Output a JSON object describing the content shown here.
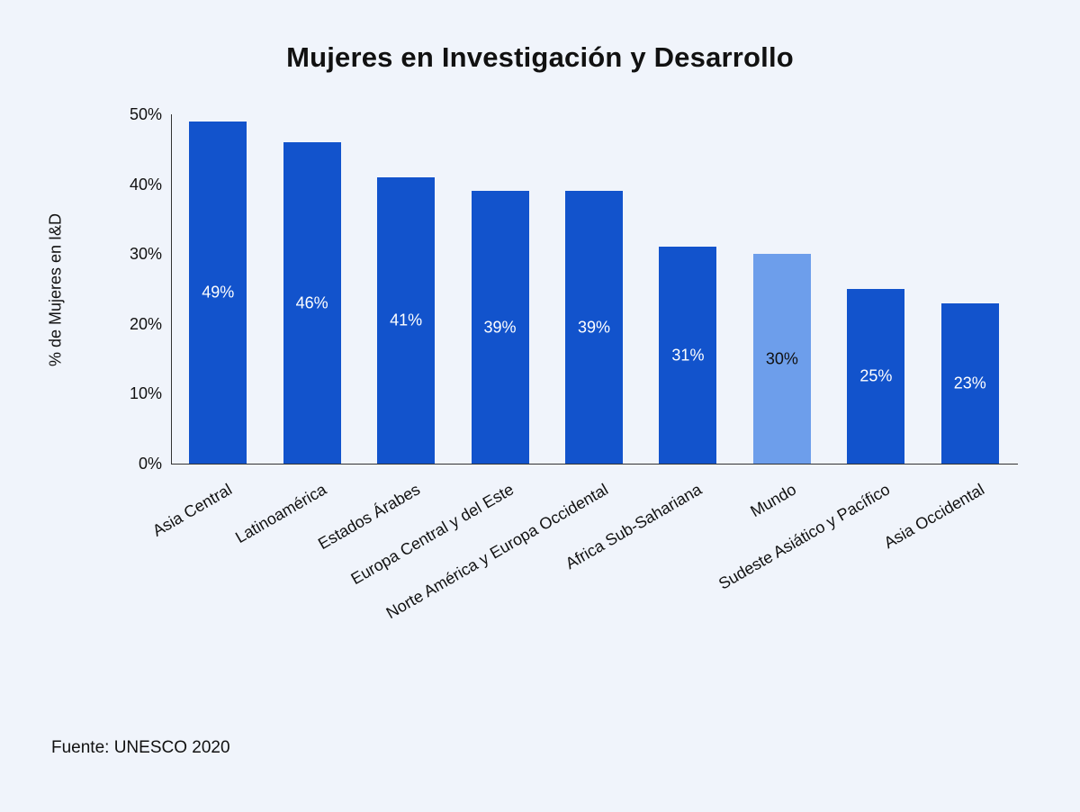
{
  "page": {
    "background": "#f0f4fb"
  },
  "chart_data": {
    "type": "bar",
    "title": "Mujeres en Investigación y Desarrollo",
    "ylabel": "% de Mujeres en I&D",
    "source": "Fuente: UNESCO 2020",
    "categories": [
      "Asia Central",
      "Latinoamérica",
      "Estados Árabes",
      "Europa Central y del Este",
      "Norte América y Europa Occidental",
      "Africa Sub-Sahariana",
      "Mundo",
      "Sudeste Asiático y Pacífico",
      "Asia Occidental"
    ],
    "values": [
      49,
      46,
      41,
      39,
      39,
      31,
      30,
      25,
      23
    ],
    "bar_labels": [
      "49%",
      "46%",
      "41%",
      "39%",
      "39%",
      "31%",
      "30%",
      "25%",
      "23%"
    ],
    "ylim": [
      0,
      50
    ],
    "yticks": [
      0,
      10,
      20,
      30,
      40,
      50
    ],
    "ytick_labels": [
      "0%",
      "10%",
      "20%",
      "30%",
      "40%",
      "50%"
    ],
    "grid": false,
    "legend": "none",
    "bar_color": "#1253cc",
    "highlight_color": "#6d9eeb",
    "highlight_index": 6,
    "label_color": "#ffffff",
    "highlight_label_color": "#111111",
    "axis_color": "#333333"
  }
}
